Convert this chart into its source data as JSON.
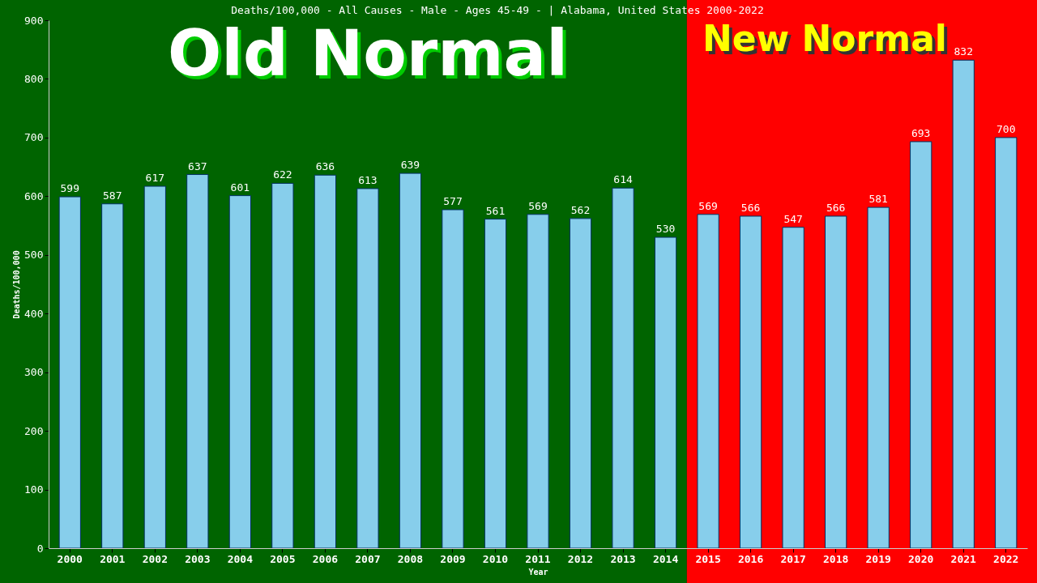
{
  "chart_data": {
    "type": "bar",
    "title": "Deaths/100,000 - All Causes - Male - Ages 45-49 -  | Alabama, United States 2000-2022",
    "xlabel": "Year",
    "ylabel": "Deaths/100,000",
    "categories": [
      "2000",
      "2001",
      "2002",
      "2003",
      "2004",
      "2005",
      "2006",
      "2007",
      "2008",
      "2009",
      "2010",
      "2011",
      "2012",
      "2013",
      "2014",
      "2015",
      "2016",
      "2017",
      "2018",
      "2019",
      "2020",
      "2021",
      "2022"
    ],
    "values": [
      599,
      587,
      617,
      637,
      601,
      622,
      636,
      613,
      639,
      577,
      561,
      569,
      562,
      614,
      530,
      569,
      566,
      547,
      566,
      581,
      693,
      832,
      700
    ],
    "color": "#87ceeb",
    "ylim": [
      0,
      900
    ],
    "yticks": [
      0,
      100,
      200,
      300,
      400,
      500,
      600,
      700,
      800,
      900
    ],
    "data_labels": true,
    "grid": false,
    "bands": [
      {
        "axis": "x",
        "from": "2000",
        "to": "2014",
        "label": "Old Normal",
        "color": "#006400"
      },
      {
        "axis": "x",
        "from": "2015",
        "to": "2022",
        "label": "New Normal",
        "color": "#ff0000"
      }
    ]
  }
}
